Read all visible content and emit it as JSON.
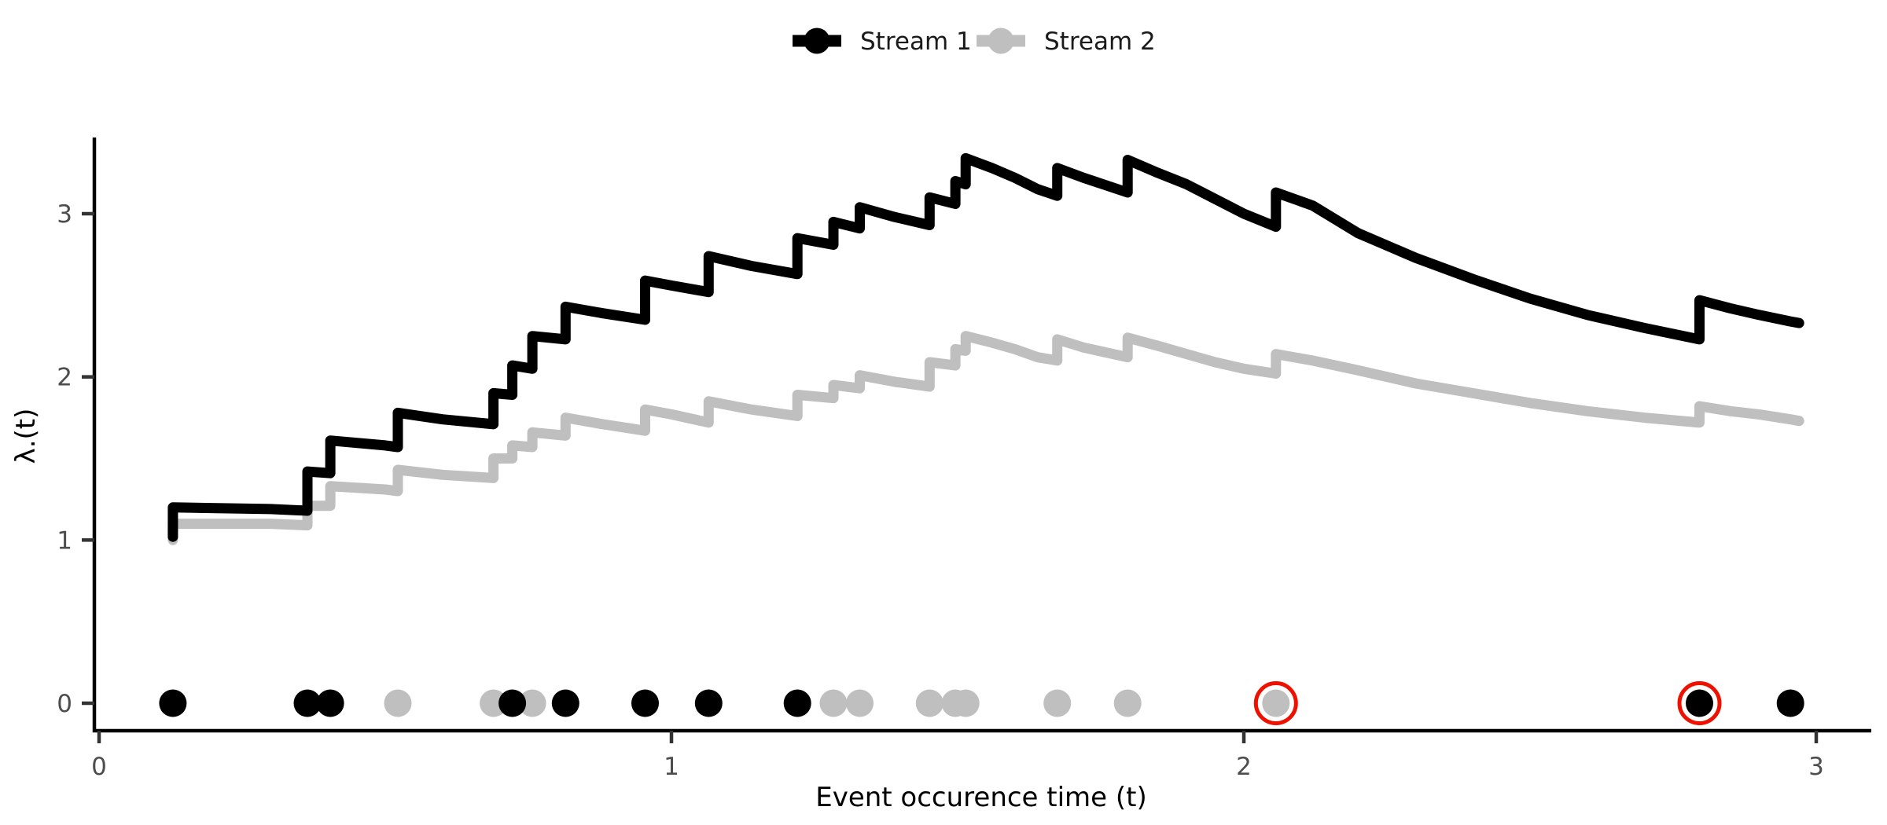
{
  "legend": {
    "items": [
      {
        "label": "Stream 1",
        "color": "#000000"
      },
      {
        "label": "Stream 2",
        "color": "#bfbfbf"
      }
    ]
  },
  "axis_text_color": "#4d4d4d",
  "chart_data": {
    "type": "line",
    "title": "",
    "xlabel": "Event occurence time (t)",
    "ylabel": "λ.(t)",
    "xlim": [
      0,
      3.1
    ],
    "ylim": [
      0,
      3.5
    ],
    "xticks": [
      0,
      1,
      2,
      3
    ],
    "yticks": [
      0,
      1,
      2,
      3
    ],
    "grid": false,
    "legend_position": "top-center",
    "series": [
      {
        "name": "Stream 1",
        "color": "#000000",
        "points": [
          [
            0.129,
            1.02
          ],
          [
            0.129,
            1.2
          ],
          [
            0.3,
            1.19
          ],
          [
            0.364,
            1.18
          ],
          [
            0.364,
            1.42
          ],
          [
            0.404,
            1.41
          ],
          [
            0.404,
            1.61
          ],
          [
            0.5,
            1.58
          ],
          [
            0.522,
            1.57
          ],
          [
            0.522,
            1.78
          ],
          [
            0.6,
            1.74
          ],
          [
            0.689,
            1.71
          ],
          [
            0.689,
            1.9
          ],
          [
            0.722,
            1.89
          ],
          [
            0.722,
            2.07
          ],
          [
            0.757,
            2.05
          ],
          [
            0.757,
            2.25
          ],
          [
            0.815,
            2.23
          ],
          [
            0.815,
            2.43
          ],
          [
            0.88,
            2.39
          ],
          [
            0.954,
            2.35
          ],
          [
            0.954,
            2.59
          ],
          [
            1.0,
            2.56
          ],
          [
            1.065,
            2.52
          ],
          [
            1.065,
            2.74
          ],
          [
            1.14,
            2.68
          ],
          [
            1.22,
            2.63
          ],
          [
            1.22,
            2.85
          ],
          [
            1.283,
            2.81
          ],
          [
            1.283,
            2.95
          ],
          [
            1.329,
            2.91
          ],
          [
            1.329,
            3.04
          ],
          [
            1.39,
            2.98
          ],
          [
            1.451,
            2.93
          ],
          [
            1.451,
            3.1
          ],
          [
            1.496,
            3.06
          ],
          [
            1.496,
            3.2
          ],
          [
            1.514,
            3.18
          ],
          [
            1.514,
            3.34
          ],
          [
            1.56,
            3.28
          ],
          [
            1.6,
            3.22
          ],
          [
            1.64,
            3.15
          ],
          [
            1.674,
            3.11
          ],
          [
            1.674,
            3.28
          ],
          [
            1.72,
            3.22
          ],
          [
            1.797,
            3.13
          ],
          [
            1.797,
            3.33
          ],
          [
            1.85,
            3.25
          ],
          [
            1.9,
            3.18
          ],
          [
            1.95,
            3.09
          ],
          [
            2.0,
            3.0
          ],
          [
            2.056,
            2.92
          ],
          [
            2.056,
            3.13
          ],
          [
            2.12,
            3.05
          ],
          [
            2.2,
            2.88
          ],
          [
            2.3,
            2.73
          ],
          [
            2.4,
            2.6
          ],
          [
            2.5,
            2.48
          ],
          [
            2.6,
            2.38
          ],
          [
            2.7,
            2.3
          ],
          [
            2.796,
            2.23
          ],
          [
            2.796,
            2.47
          ],
          [
            2.85,
            2.42
          ],
          [
            2.9,
            2.38
          ],
          [
            2.955,
            2.34
          ],
          [
            2.97,
            2.33
          ]
        ]
      },
      {
        "name": "Stream 2",
        "color": "#bfbfbf",
        "points": [
          [
            0.129,
            1.0
          ],
          [
            0.129,
            1.1
          ],
          [
            0.3,
            1.1
          ],
          [
            0.364,
            1.09
          ],
          [
            0.364,
            1.21
          ],
          [
            0.404,
            1.21
          ],
          [
            0.404,
            1.33
          ],
          [
            0.5,
            1.31
          ],
          [
            0.522,
            1.3
          ],
          [
            0.522,
            1.43
          ],
          [
            0.6,
            1.4
          ],
          [
            0.689,
            1.38
          ],
          [
            0.689,
            1.5
          ],
          [
            0.722,
            1.5
          ],
          [
            0.722,
            1.58
          ],
          [
            0.757,
            1.57
          ],
          [
            0.757,
            1.66
          ],
          [
            0.815,
            1.64
          ],
          [
            0.815,
            1.75
          ],
          [
            0.88,
            1.71
          ],
          [
            0.954,
            1.67
          ],
          [
            0.954,
            1.8
          ],
          [
            1.0,
            1.77
          ],
          [
            1.065,
            1.72
          ],
          [
            1.065,
            1.85
          ],
          [
            1.14,
            1.8
          ],
          [
            1.22,
            1.76
          ],
          [
            1.22,
            1.89
          ],
          [
            1.283,
            1.87
          ],
          [
            1.283,
            1.95
          ],
          [
            1.329,
            1.93
          ],
          [
            1.329,
            2.01
          ],
          [
            1.39,
            1.97
          ],
          [
            1.451,
            1.94
          ],
          [
            1.451,
            2.09
          ],
          [
            1.496,
            2.07
          ],
          [
            1.496,
            2.17
          ],
          [
            1.514,
            2.16
          ],
          [
            1.514,
            2.25
          ],
          [
            1.56,
            2.21
          ],
          [
            1.6,
            2.17
          ],
          [
            1.64,
            2.12
          ],
          [
            1.674,
            2.1
          ],
          [
            1.674,
            2.23
          ],
          [
            1.72,
            2.18
          ],
          [
            1.797,
            2.12
          ],
          [
            1.797,
            2.24
          ],
          [
            1.85,
            2.19
          ],
          [
            1.9,
            2.14
          ],
          [
            1.95,
            2.09
          ],
          [
            2.0,
            2.05
          ],
          [
            2.056,
            2.02
          ],
          [
            2.056,
            2.14
          ],
          [
            2.12,
            2.1
          ],
          [
            2.2,
            2.04
          ],
          [
            2.3,
            1.96
          ],
          [
            2.4,
            1.9
          ],
          [
            2.5,
            1.84
          ],
          [
            2.6,
            1.79
          ],
          [
            2.7,
            1.75
          ],
          [
            2.796,
            1.72
          ],
          [
            2.796,
            1.82
          ],
          [
            2.85,
            1.79
          ],
          [
            2.9,
            1.77
          ],
          [
            2.955,
            1.74
          ],
          [
            2.97,
            1.73
          ]
        ]
      }
    ],
    "events": [
      {
        "stream": "Stream 1",
        "color": "#000000",
        "y": 0,
        "times": [
          0.129,
          0.364,
          0.404,
          0.722,
          0.815,
          0.954,
          1.065,
          1.22,
          2.796,
          2.955
        ]
      },
      {
        "stream": "Stream 2",
        "color": "#bfbfbf",
        "y": 0,
        "times": [
          0.522,
          0.689,
          0.757,
          1.283,
          1.329,
          1.451,
          1.496,
          1.514,
          1.674,
          1.797,
          2.056
        ]
      }
    ],
    "highlighted_events": [
      {
        "stream": "Stream 2",
        "time": 2.056,
        "marker": "red-circle"
      },
      {
        "stream": "Stream 1",
        "time": 2.796,
        "marker": "red-circle"
      }
    ],
    "highlight_color": "#ee1100"
  }
}
